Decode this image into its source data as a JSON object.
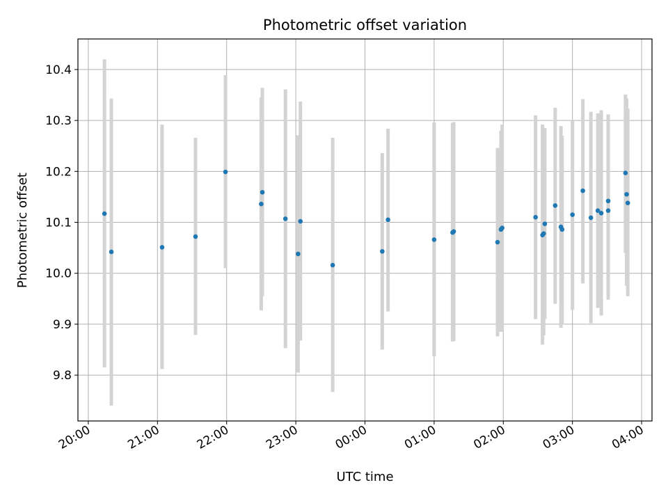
{
  "chart_data": {
    "type": "scatter",
    "title": "Photometric offset variation",
    "xlabel": "UTC time",
    "ylabel": "Photometric offset",
    "x_axis": "time (HH:MM, UTC)",
    "xlim": [
      "19:51",
      "04:09"
    ],
    "ylim": [
      9.71,
      10.46
    ],
    "grid": true,
    "colors": {
      "point": "#1f77b4",
      "errorbar": "#d3d3d3",
      "grid": "#b0b0b0"
    },
    "x_ticks": [
      "20:00",
      "21:00",
      "22:00",
      "23:00",
      "00:00",
      "01:00",
      "02:00",
      "03:00",
      "04:00"
    ],
    "y_ticks": [
      "9.8",
      "9.9",
      "10.0",
      "10.1",
      "10.2",
      "10.3",
      "10.4"
    ],
    "points": [
      {
        "time": "20:14",
        "y": 10.117,
        "lo": 9.815,
        "hi": 10.42
      },
      {
        "time": "20:20",
        "y": 10.042,
        "lo": 9.74,
        "hi": 10.343
      },
      {
        "time": "21:04",
        "y": 10.051,
        "lo": 9.812,
        "hi": 10.292
      },
      {
        "time": "21:33",
        "y": 10.072,
        "lo": 9.879,
        "hi": 10.266
      },
      {
        "time": "21:59",
        "y": 10.199,
        "lo": 10.01,
        "hi": 10.389
      },
      {
        "time": "22:30",
        "y": 10.136,
        "lo": 9.927,
        "hi": 10.345
      },
      {
        "time": "22:31",
        "y": 10.159,
        "lo": 9.955,
        "hi": 10.364
      },
      {
        "time": "22:51",
        "y": 10.107,
        "lo": 9.853,
        "hi": 10.361
      },
      {
        "time": "23:02",
        "y": 10.038,
        "lo": 9.805,
        "hi": 10.271
      },
      {
        "time": "23:04",
        "y": 10.102,
        "lo": 9.868,
        "hi": 10.337
      },
      {
        "time": "23:32",
        "y": 10.016,
        "lo": 9.767,
        "hi": 10.266
      },
      {
        "time": "00:15",
        "y": 10.043,
        "lo": 9.85,
        "hi": 10.236
      },
      {
        "time": "00:20",
        "y": 10.105,
        "lo": 9.925,
        "hi": 10.284
      },
      {
        "time": "01:00",
        "y": 10.066,
        "lo": 9.837,
        "hi": 10.296
      },
      {
        "time": "01:16",
        "y": 10.08,
        "lo": 9.866,
        "hi": 10.295
      },
      {
        "time": "01:17",
        "y": 10.082,
        "lo": 9.867,
        "hi": 10.297
      },
      {
        "time": "01:55",
        "y": 10.061,
        "lo": 9.876,
        "hi": 10.246
      },
      {
        "time": "01:58",
        "y": 10.086,
        "lo": 9.885,
        "hi": 10.28
      },
      {
        "time": "01:59",
        "y": 10.089,
        "lo": 9.888,
        "hi": 10.292
      },
      {
        "time": "02:28",
        "y": 10.11,
        "lo": 9.91,
        "hi": 10.31
      },
      {
        "time": "02:34",
        "y": 10.075,
        "lo": 9.86,
        "hi": 10.292
      },
      {
        "time": "02:35",
        "y": 10.078,
        "lo": 9.878,
        "hi": 10.283
      },
      {
        "time": "02:36",
        "y": 10.097,
        "lo": 9.91,
        "hi": 10.285
      },
      {
        "time": "02:45",
        "y": 10.133,
        "lo": 9.94,
        "hi": 10.325
      },
      {
        "time": "02:50",
        "y": 10.091,
        "lo": 9.893,
        "hi": 10.289
      },
      {
        "time": "02:51",
        "y": 10.086,
        "lo": 9.9,
        "hi": 10.27
      },
      {
        "time": "03:00",
        "y": 10.115,
        "lo": 9.928,
        "hi": 10.3
      },
      {
        "time": "03:09",
        "y": 10.162,
        "lo": 9.98,
        "hi": 10.342
      },
      {
        "time": "03:16",
        "y": 10.109,
        "lo": 9.902,
        "hi": 10.317
      },
      {
        "time": "03:22",
        "y": 10.123,
        "lo": 9.932,
        "hi": 10.314
      },
      {
        "time": "03:25",
        "y": 10.118,
        "lo": 9.917,
        "hi": 10.32
      },
      {
        "time": "03:31",
        "y": 10.142,
        "lo": 9.948,
        "hi": 10.312
      },
      {
        "time": "03:31",
        "y": 10.123,
        "lo": 9.97,
        "hi": 10.29
      },
      {
        "time": "03:46",
        "y": 10.197,
        "lo": 10.04,
        "hi": 10.351
      },
      {
        "time": "03:47",
        "y": 10.155,
        "lo": 9.975,
        "hi": 10.343
      },
      {
        "time": "03:48",
        "y": 10.138,
        "lo": 9.955,
        "hi": 10.323
      }
    ]
  }
}
